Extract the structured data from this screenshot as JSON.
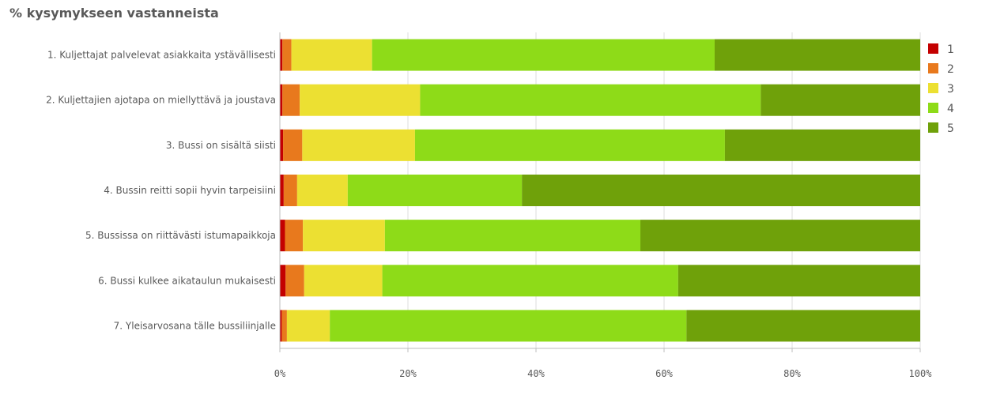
{
  "chart_data": {
    "type": "bar",
    "orientation": "horizontal",
    "stacked": true,
    "title": "% kysymykseen vastanneista",
    "categories": [
      "1. Kuljettajat palvelevat asiakkaita ystävällisesti",
      "2. Kuljettajien ajotapa on miellyttävä ja joustava",
      "3. Bussi on sisältä siisti",
      "4. Bussin reitti sopii hyvin tarpeisiini",
      "5. Bussissa on riittävästi istumapaikkoja",
      "6. Bussi kulkee aikataulun mukaisesti",
      "7. Yleisarvosana tälle bussiliinjalle"
    ],
    "series": [
      {
        "name": "1",
        "color": "#c40000",
        "values": [
          0.4,
          0.4,
          0.5,
          0.6,
          0.8,
          0.9,
          0.3
        ]
      },
      {
        "name": "2",
        "color": "#e8791d",
        "values": [
          1.4,
          2.7,
          3.0,
          2.1,
          2.8,
          2.9,
          0.8
        ]
      },
      {
        "name": "3",
        "color": "#ece032",
        "values": [
          12.6,
          18.8,
          17.6,
          7.9,
          12.8,
          12.2,
          6.7
        ]
      },
      {
        "name": "4",
        "color": "#8edb18",
        "values": [
          53.5,
          53.2,
          48.4,
          27.2,
          39.9,
          46.2,
          55.7
        ]
      },
      {
        "name": "5",
        "color": "#6fa10a",
        "values": [
          32.1,
          24.9,
          30.5,
          62.2,
          43.7,
          37.8,
          36.5
        ]
      }
    ],
    "x_ticks": [
      "0%",
      "20%",
      "40%",
      "60%",
      "80%",
      "100%"
    ],
    "xlim": [
      0,
      100
    ],
    "legend_position": "right",
    "grid": true
  }
}
